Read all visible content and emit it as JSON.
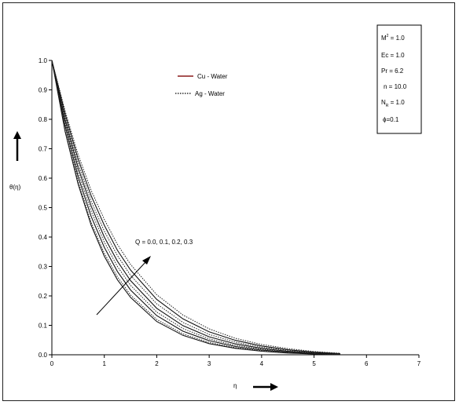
{
  "chart_data": {
    "type": "line",
    "title": "",
    "xlabel": "η",
    "ylabel": "θ(η)",
    "xlim": [
      0,
      7
    ],
    "ylim": [
      0,
      1
    ],
    "xticks": [
      "0",
      "1",
      "2",
      "3",
      "4",
      "5",
      "6",
      "7"
    ],
    "yticks": [
      "0.0",
      "0.1",
      "0.2",
      "0.3",
      "0.4",
      "0.5",
      "0.6",
      "0.7",
      "0.8",
      "0.9",
      "1.0"
    ],
    "legend": {
      "placement": "top-center",
      "entries": [
        {
          "label": "Cu - Water",
          "style": "solid"
        },
        {
          "label": "Ag - Water",
          "style": "dotted"
        }
      ]
    },
    "parameter_box": {
      "placement": "top-right",
      "lines": [
        "M² = 1.0",
        "Ec = 1.0",
        "Pr = 6.2",
        "n = 10.0",
        "NR = 1.0",
        "ϕ=0.1"
      ]
    },
    "annotation": "Q = 0.0, 0.1, 0.2, 0.3",
    "series": [
      {
        "style": "solid",
        "values": [
          [
            0,
            1.0
          ],
          [
            0.25,
            0.76
          ],
          [
            0.5,
            0.58
          ],
          [
            0.75,
            0.44
          ],
          [
            1,
            0.335
          ],
          [
            1.25,
            0.255
          ],
          [
            1.5,
            0.195
          ],
          [
            2,
            0.113
          ],
          [
            2.5,
            0.066
          ],
          [
            3,
            0.038
          ],
          [
            3.5,
            0.022
          ],
          [
            4,
            0.012
          ],
          [
            4.5,
            0.006
          ],
          [
            5,
            0.003
          ],
          [
            5.5,
            0.001
          ]
        ]
      },
      {
        "style": "solid",
        "values": [
          [
            0,
            1.0
          ],
          [
            0.25,
            0.78
          ],
          [
            0.5,
            0.605
          ],
          [
            0.75,
            0.47
          ],
          [
            1,
            0.365
          ],
          [
            1.25,
            0.283
          ],
          [
            1.5,
            0.22
          ],
          [
            2,
            0.133
          ],
          [
            2.5,
            0.08
          ],
          [
            3,
            0.048
          ],
          [
            3.5,
            0.028
          ],
          [
            4,
            0.016
          ],
          [
            4.5,
            0.009
          ],
          [
            5,
            0.004
          ],
          [
            5.5,
            0.002
          ]
        ]
      },
      {
        "style": "solid",
        "values": [
          [
            0,
            1.0
          ],
          [
            0.25,
            0.8
          ],
          [
            0.5,
            0.635
          ],
          [
            0.75,
            0.505
          ],
          [
            1,
            0.4
          ],
          [
            1.25,
            0.318
          ],
          [
            1.5,
            0.252
          ],
          [
            2,
            0.158
          ],
          [
            2.5,
            0.099
          ],
          [
            3,
            0.061
          ],
          [
            3.5,
            0.037
          ],
          [
            4,
            0.022
          ],
          [
            4.5,
            0.012
          ],
          [
            5,
            0.006
          ],
          [
            5.5,
            0.003
          ]
        ]
      },
      {
        "style": "solid",
        "values": [
          [
            0,
            1.0
          ],
          [
            0.25,
            0.82
          ],
          [
            0.5,
            0.665
          ],
          [
            0.75,
            0.54
          ],
          [
            1,
            0.44
          ],
          [
            1.25,
            0.355
          ],
          [
            1.5,
            0.288
          ],
          [
            2,
            0.188
          ],
          [
            2.5,
            0.122
          ],
          [
            3,
            0.078
          ],
          [
            3.5,
            0.049
          ],
          [
            4,
            0.03
          ],
          [
            4.5,
            0.017
          ],
          [
            5,
            0.009
          ],
          [
            5.5,
            0.004
          ]
        ]
      },
      {
        "style": "dotted",
        "values": [
          [
            0,
            1.0
          ],
          [
            0.25,
            0.765
          ],
          [
            0.5,
            0.59
          ],
          [
            0.75,
            0.45
          ],
          [
            1,
            0.345
          ],
          [
            1.25,
            0.265
          ],
          [
            1.5,
            0.203
          ],
          [
            2,
            0.12
          ],
          [
            2.5,
            0.071
          ],
          [
            3,
            0.042
          ],
          [
            3.5,
            0.024
          ],
          [
            4,
            0.014
          ],
          [
            4.5,
            0.007
          ],
          [
            5,
            0.003
          ],
          [
            5.5,
            0.001
          ]
        ]
      },
      {
        "style": "dotted",
        "values": [
          [
            0,
            1.0
          ],
          [
            0.25,
            0.79
          ],
          [
            0.5,
            0.62
          ],
          [
            0.75,
            0.488
          ],
          [
            1,
            0.383
          ],
          [
            1.25,
            0.3
          ],
          [
            1.5,
            0.236
          ],
          [
            2,
            0.145
          ],
          [
            2.5,
            0.089
          ],
          [
            3,
            0.054
          ],
          [
            3.5,
            0.032
          ],
          [
            4,
            0.019
          ],
          [
            4.5,
            0.011
          ],
          [
            5,
            0.005
          ],
          [
            5.5,
            0.002
          ]
        ]
      },
      {
        "style": "dotted",
        "values": [
          [
            0,
            1.0
          ],
          [
            0.25,
            0.81
          ],
          [
            0.5,
            0.65
          ],
          [
            0.75,
            0.522
          ],
          [
            1,
            0.42
          ],
          [
            1.25,
            0.337
          ],
          [
            1.5,
            0.27
          ],
          [
            2,
            0.173
          ],
          [
            2.5,
            0.11
          ],
          [
            3,
            0.069
          ],
          [
            3.5,
            0.043
          ],
          [
            4,
            0.026
          ],
          [
            4.5,
            0.015
          ],
          [
            5,
            0.008
          ],
          [
            5.5,
            0.003
          ]
        ]
      },
      {
        "style": "dotted",
        "values": [
          [
            0,
            1.0
          ],
          [
            0.25,
            0.83
          ],
          [
            0.5,
            0.68
          ],
          [
            0.75,
            0.558
          ],
          [
            1,
            0.46
          ],
          [
            1.25,
            0.375
          ],
          [
            1.5,
            0.307
          ],
          [
            2,
            0.204
          ],
          [
            2.5,
            0.135
          ],
          [
            3,
            0.088
          ],
          [
            3.5,
            0.056
          ],
          [
            4,
            0.035
          ],
          [
            4.5,
            0.021
          ],
          [
            5,
            0.011
          ],
          [
            5.5,
            0.005
          ]
        ]
      }
    ]
  }
}
